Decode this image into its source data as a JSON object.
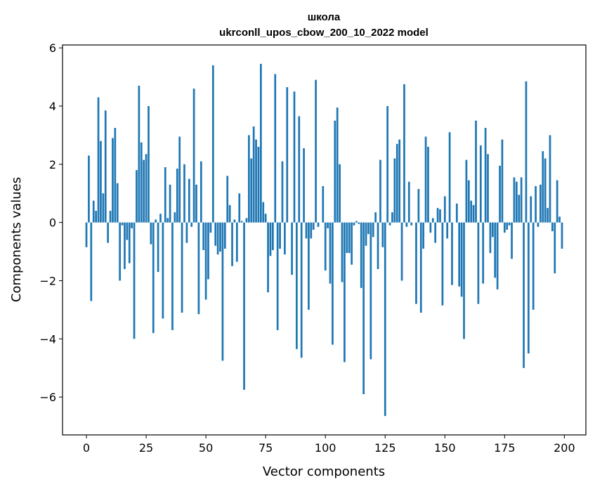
{
  "chart_data": {
    "type": "bar",
    "title": "школа",
    "subtitle": "ukrconll_upos_cbow_200_10_2022 model",
    "xlabel": "Vector components",
    "ylabel": "Components values",
    "xlim": [
      -10,
      209
    ],
    "ylim": [
      -7.3,
      6.1
    ],
    "x_ticks": [
      0,
      25,
      50,
      75,
      100,
      125,
      150,
      175,
      200
    ],
    "y_ticks": [
      -6,
      -4,
      -2,
      0,
      2,
      4,
      6
    ],
    "x_tick_labels": [
      "0",
      "25",
      "50",
      "75",
      "100",
      "125",
      "150",
      "175",
      "200"
    ],
    "y_tick_labels": [
      "−6",
      "−4",
      "−2",
      "0",
      "2",
      "4",
      "6"
    ],
    "grid": false,
    "bar_color": "#1f77b4",
    "values": [
      -0.85,
      2.3,
      -2.7,
      0.75,
      0.4,
      4.3,
      2.8,
      1.0,
      3.85,
      -0.7,
      0.4,
      2.9,
      3.25,
      1.35,
      -2.0,
      -0.1,
      -1.6,
      -0.6,
      -1.4,
      -0.2,
      -4.0,
      1.8,
      4.7,
      2.75,
      2.15,
      2.35,
      4.0,
      -0.75,
      -3.8,
      0.1,
      -1.7,
      0.3,
      -3.3,
      1.9,
      0.15,
      1.3,
      -3.7,
      0.35,
      1.85,
      2.95,
      -3.1,
      2.0,
      -0.7,
      1.5,
      -0.15,
      4.6,
      1.3,
      -3.15,
      2.1,
      -0.95,
      -2.65,
      -1.95,
      -0.35,
      5.4,
      -0.8,
      -1.1,
      -1.0,
      -4.75,
      -0.9,
      1.6,
      0.6,
      -1.5,
      0.1,
      -1.35,
      1.0,
      0.05,
      -5.75,
      0.15,
      3.0,
      2.2,
      3.3,
      2.85,
      2.6,
      5.45,
      0.7,
      0.3,
      -2.4,
      -1.15,
      -0.95,
      5.1,
      -3.7,
      -0.9,
      2.1,
      -1.1,
      4.65,
      0.0,
      -1.8,
      4.5,
      -4.35,
      3.65,
      -4.65,
      2.55,
      -0.55,
      -3.0,
      -0.55,
      -0.25,
      4.9,
      -0.15,
      0.0,
      1.25,
      -1.65,
      -0.2,
      -2.1,
      -4.2,
      3.5,
      3.95,
      2.0,
      -2.05,
      -4.8,
      -1.05,
      -1.05,
      -1.45,
      -0.1,
      0.05,
      -0.05,
      -2.25,
      -5.9,
      -0.8,
      -0.4,
      -4.7,
      -0.5,
      0.35,
      -1.6,
      2.15,
      -0.85,
      -6.65,
      4.0,
      -0.1,
      0.35,
      2.2,
      2.7,
      2.85,
      -2.0,
      4.75,
      -0.15,
      1.4,
      -0.1,
      0.0,
      -2.8,
      1.15,
      -3.1,
      -0.9,
      2.95,
      2.6,
      -0.35,
      0.15,
      -0.7,
      0.5,
      0.45,
      -2.85,
      0.9,
      -0.55,
      3.1,
      -2.15,
      0.0,
      0.65,
      -2.2,
      -2.55,
      -4.0,
      2.15,
      1.45,
      0.75,
      0.6,
      3.5,
      -2.8,
      2.65,
      -2.1,
      3.25,
      2.35,
      -1.05,
      -0.5,
      -1.9,
      -2.3,
      1.95,
      2.85,
      -0.35,
      -0.25,
      -0.1,
      -1.25,
      1.55,
      1.4,
      0.95,
      1.55,
      -5.0,
      4.85,
      -4.5,
      0.9,
      -3.0,
      1.25,
      -0.15,
      1.3,
      2.45,
      2.2,
      0.5,
      3.0,
      -0.3,
      -1.75,
      1.45,
      0.2,
      -0.9
    ]
  }
}
